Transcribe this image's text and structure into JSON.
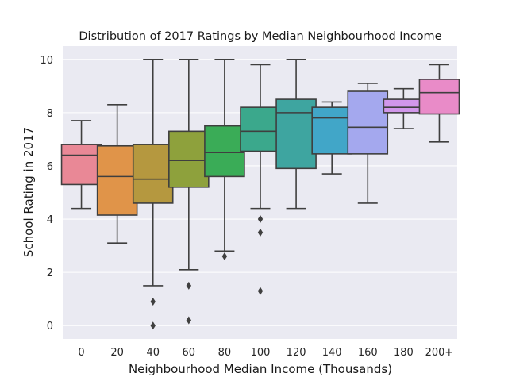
{
  "chart_data": {
    "type": "box",
    "title": "Distribution of 2017 Ratings by Median Neighbourhood Income",
    "xlabel": "Neighbourhood Median Income (Thousands)",
    "ylabel": "School Rating in 2017",
    "ylim": [
      -0.5,
      10.5
    ],
    "yticks": [
      0,
      2,
      4,
      6,
      8,
      10
    ],
    "grid": true,
    "categories": [
      "0",
      "20",
      "40",
      "60",
      "80",
      "100",
      "120",
      "140",
      "160",
      "180",
      "200+"
    ],
    "boxes": [
      {
        "category": "0",
        "whisker_low": 4.4,
        "q1": 5.3,
        "median": 6.4,
        "q3": 6.8,
        "whisker_high": 7.7,
        "outliers": [],
        "color": "#e98896"
      },
      {
        "category": "20",
        "whisker_low": 3.1,
        "q1": 4.15,
        "median": 5.6,
        "q3": 6.75,
        "whisker_high": 8.3,
        "outliers": [],
        "color": "#e09449"
      },
      {
        "category": "40",
        "whisker_low": 1.5,
        "q1": 4.6,
        "median": 5.5,
        "q3": 6.8,
        "whisker_high": 10.0,
        "outliers": [
          0.9,
          0.0
        ],
        "color": "#b5983f"
      },
      {
        "category": "60",
        "whisker_low": 2.1,
        "q1": 5.2,
        "median": 6.2,
        "q3": 7.3,
        "whisker_high": 10.0,
        "outliers": [
          1.5,
          0.2
        ],
        "color": "#8ea13c"
      },
      {
        "category": "80",
        "whisker_low": 2.8,
        "q1": 5.6,
        "median": 6.5,
        "q3": 7.5,
        "whisker_high": 10.0,
        "outliers": [
          2.6
        ],
        "color": "#3aac57"
      },
      {
        "category": "100",
        "whisker_low": 4.4,
        "q1": 6.55,
        "median": 7.3,
        "q3": 8.2,
        "whisker_high": 9.8,
        "outliers": [
          4.0,
          3.5,
          1.3
        ],
        "color": "#3ba88c"
      },
      {
        "category": "120",
        "whisker_low": 4.4,
        "q1": 5.9,
        "median": 8.0,
        "q3": 8.5,
        "whisker_high": 10.0,
        "outliers": [],
        "color": "#3ea5a0"
      },
      {
        "category": "140",
        "whisker_low": 5.7,
        "q1": 6.45,
        "median": 7.8,
        "q3": 8.2,
        "whisker_high": 8.4,
        "outliers": [],
        "color": "#41a6c8"
      },
      {
        "category": "160",
        "whisker_low": 4.6,
        "q1": 6.45,
        "median": 7.45,
        "q3": 8.8,
        "whisker_high": 9.1,
        "outliers": [],
        "color": "#a4a8ee"
      },
      {
        "category": "180",
        "whisker_low": 7.4,
        "q1": 8.0,
        "median": 8.2,
        "q3": 8.5,
        "whisker_high": 8.9,
        "outliers": [],
        "color": "#d197ea"
      },
      {
        "category": "200+",
        "whisker_low": 6.9,
        "q1": 7.95,
        "median": 8.75,
        "q3": 9.25,
        "whisker_high": 9.8,
        "outliers": [],
        "color": "#e98bc8"
      }
    ],
    "colors": {
      "plot_background": "#eaeaf2",
      "grid": "#ffffff",
      "line": "#3f3f3f"
    }
  }
}
